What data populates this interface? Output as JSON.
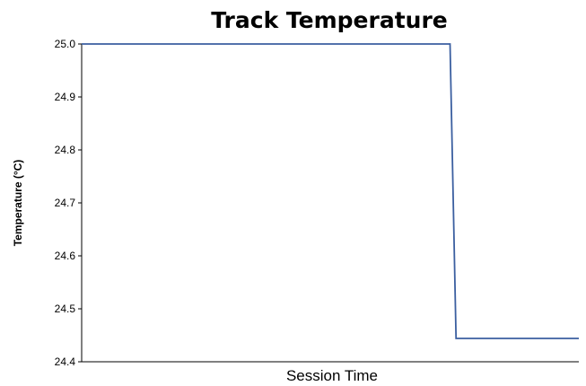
{
  "chart_data": {
    "type": "line",
    "title": "Track Temperature",
    "xlabel": "Session Time",
    "ylabel": "Temperature (°C)",
    "ylim": [
      24.4,
      25.0
    ],
    "yticks": [
      "24.4",
      "24.5",
      "24.6",
      "24.7",
      "24.8",
      "24.9",
      "25.0"
    ],
    "xlim": [
      0,
      100
    ],
    "grid": false,
    "legend": "none",
    "series": [
      {
        "color": "#3b5fa0",
        "x": [
          0,
          74.1,
          75.3,
          100
        ],
        "y": [
          25.0,
          25.0,
          24.444,
          24.444
        ]
      }
    ]
  }
}
